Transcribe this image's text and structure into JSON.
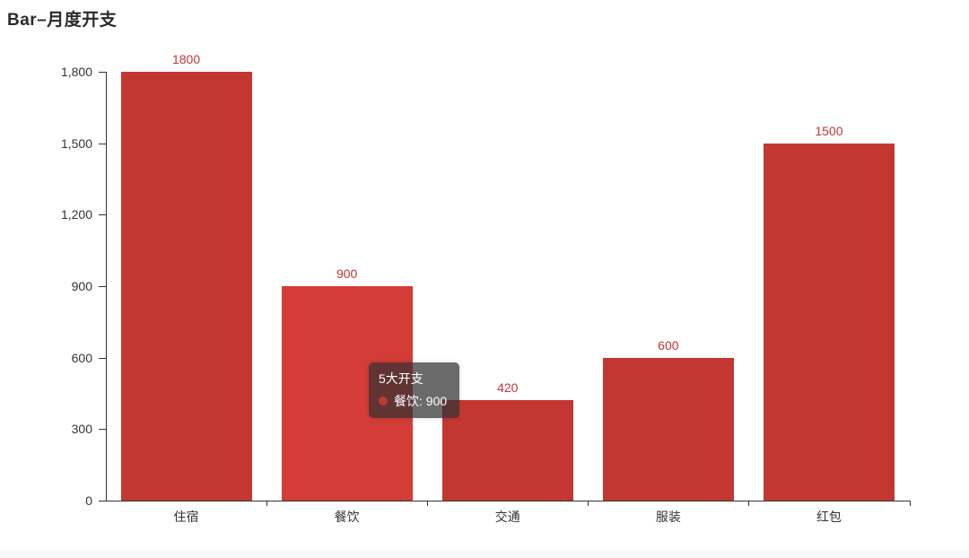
{
  "page": {
    "title": "Bar–月度开支"
  },
  "chart_data": {
    "type": "bar",
    "title": "Bar–月度开支",
    "series_name": "5大开支",
    "categories": [
      "住宿",
      "餐饮",
      "交通",
      "服装",
      "红包"
    ],
    "values": [
      1800,
      900,
      420,
      600,
      1500
    ],
    "value_labels": [
      "1800",
      "900",
      "420",
      "600",
      "1500"
    ],
    "y_tick_labels": [
      "1,800",
      "1,500",
      "1,200",
      "900",
      "600",
      "300",
      "0"
    ],
    "y_tick_values": [
      1800,
      1500,
      1200,
      900,
      600,
      300,
      0
    ],
    "xlabel": "",
    "ylabel": "",
    "ylim": [
      0,
      1800
    ],
    "grid": "off",
    "legend": "none",
    "bar_color": "#c33732",
    "bar_hover_color": "#d43c37",
    "value_label_color": "#c23632",
    "axis_color": "#333333",
    "highlight_index": 1,
    "highlighted_category": "餐饮"
  },
  "tooltip": {
    "title": "5大开支",
    "series_label": "餐饮",
    "value": "900",
    "text": "餐饮: 900",
    "marker_color": "#c33732"
  }
}
